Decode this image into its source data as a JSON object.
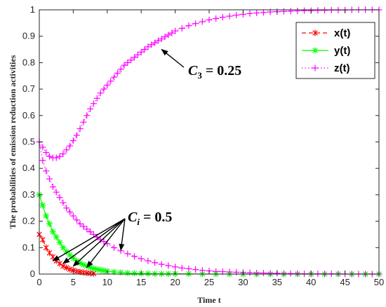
{
  "chart_data": {
    "type": "line",
    "xlabel": "Time t",
    "ylabel": "The probabilities of emission reduction activities",
    "xlim": [
      0,
      50
    ],
    "ylim": [
      0,
      1
    ],
    "x_ticks": [
      0,
      5,
      10,
      15,
      20,
      25,
      30,
      35,
      40,
      45,
      50
    ],
    "y_ticks": [
      0,
      0.1,
      0.2,
      0.3,
      0.4,
      0.5,
      0.6,
      0.7,
      0.8,
      0.9,
      1
    ],
    "grid": false,
    "legend_position": "top-right",
    "series": [
      {
        "name": "x(t)",
        "color": "#ff0000",
        "marker": "x-star",
        "line": "dashed",
        "group": "ci",
        "x": [
          0,
          0.5,
          1,
          1.5,
          2,
          2.5,
          3,
          3.5,
          4,
          4.5,
          5,
          5.5,
          6,
          6.5,
          7,
          7.5,
          8
        ],
        "y": [
          0.15,
          0.13,
          0.1,
          0.08,
          0.065,
          0.05,
          0.04,
          0.03,
          0.024,
          0.018,
          0.014,
          0.01,
          0.008,
          0.006,
          0.004,
          0.003,
          0.002
        ]
      },
      {
        "name": "y(t)",
        "color": "#00ff00",
        "marker": "asterisk",
        "line": "solid",
        "group": "ci",
        "x": [
          0,
          0.5,
          1,
          1.5,
          2,
          2.5,
          3,
          3.5,
          4,
          4.5,
          5,
          5.5,
          6,
          6.5,
          7,
          7.5,
          8,
          8.5,
          9,
          9.5,
          10,
          11,
          12,
          13,
          14,
          15,
          16,
          17,
          18,
          19,
          20,
          22,
          24,
          26,
          28,
          30,
          32,
          34,
          36,
          38,
          40,
          42,
          44,
          46,
          48,
          50
        ],
        "y": [
          0.3,
          0.26,
          0.22,
          0.19,
          0.16,
          0.14,
          0.12,
          0.1,
          0.085,
          0.072,
          0.06,
          0.05,
          0.042,
          0.035,
          0.03,
          0.025,
          0.021,
          0.018,
          0.015,
          0.013,
          0.011,
          0.008,
          0.006,
          0.004,
          0.003,
          0.002,
          0.002,
          0.001,
          0.001,
          0.001,
          0.001,
          0.001,
          0,
          0,
          0,
          0,
          0,
          0,
          0,
          0,
          0,
          0,
          0,
          0,
          0,
          0
        ]
      },
      {
        "name": "z(t)",
        "color": "#ff00ff",
        "marker": "plus",
        "line": "dotted",
        "group": "ci",
        "x": [
          0,
          0.5,
          1,
          1.5,
          2,
          2.5,
          3,
          3.5,
          4,
          4.5,
          5,
          5.5,
          6,
          6.5,
          7,
          7.5,
          8,
          8.5,
          9,
          9.5,
          10,
          11,
          12,
          13,
          14,
          15,
          16,
          17,
          18,
          19,
          20,
          21,
          22,
          23,
          24,
          25,
          26,
          27,
          28,
          29,
          30,
          31,
          32,
          33,
          34,
          35,
          36,
          37,
          38,
          39,
          40,
          41,
          42,
          43,
          44,
          45,
          46,
          47,
          48,
          49,
          50
        ],
        "y": [
          0.5,
          0.43,
          0.39,
          0.36,
          0.33,
          0.31,
          0.29,
          0.27,
          0.25,
          0.235,
          0.22,
          0.205,
          0.19,
          0.18,
          0.17,
          0.16,
          0.15,
          0.14,
          0.13,
          0.123,
          0.115,
          0.1,
          0.088,
          0.077,
          0.067,
          0.058,
          0.05,
          0.043,
          0.037,
          0.032,
          0.027,
          0.023,
          0.02,
          0.017,
          0.014,
          0.012,
          0.01,
          0.009,
          0.008,
          0.007,
          0.006,
          0.005,
          0.004,
          0.004,
          0.003,
          0.003,
          0.002,
          0.002,
          0.002,
          0.001,
          0.001,
          0.001,
          0.001,
          0.001,
          0.001,
          0,
          0,
          0,
          0,
          0,
          0
        ]
      },
      {
        "name": "z(t)",
        "color": "#ff00ff",
        "marker": "plus",
        "line": "dotted",
        "group": "c3",
        "x": [
          0,
          0.5,
          1,
          1.5,
          2,
          2.5,
          3,
          3.5,
          4,
          4.5,
          5,
          5.5,
          6,
          6.5,
          7,
          7.5,
          8,
          8.5,
          9,
          9.5,
          10,
          10.5,
          11,
          11.5,
          12,
          12.5,
          13,
          13.5,
          14,
          14.5,
          15,
          15.5,
          16,
          16.5,
          17,
          17.5,
          18,
          18.5,
          19,
          19.5,
          20,
          21,
          22,
          23,
          24,
          25,
          26,
          27,
          28,
          29,
          30,
          31,
          32,
          33,
          34,
          35,
          36,
          37,
          38,
          39,
          40,
          41,
          42,
          43,
          44,
          45,
          46,
          47,
          48,
          49,
          50
        ],
        "y": [
          0.5,
          0.48,
          0.46,
          0.445,
          0.44,
          0.44,
          0.445,
          0.455,
          0.47,
          0.485,
          0.505,
          0.525,
          0.55,
          0.575,
          0.6,
          0.625,
          0.645,
          0.665,
          0.685,
          0.7,
          0.715,
          0.73,
          0.745,
          0.76,
          0.775,
          0.79,
          0.8,
          0.81,
          0.82,
          0.83,
          0.84,
          0.85,
          0.86,
          0.868,
          0.875,
          0.883,
          0.89,
          0.898,
          0.905,
          0.912,
          0.92,
          0.93,
          0.94,
          0.948,
          0.955,
          0.962,
          0.967,
          0.972,
          0.976,
          0.98,
          0.983,
          0.986,
          0.988,
          0.99,
          0.992,
          0.993,
          0.994,
          0.995,
          0.996,
          0.997,
          0.997,
          0.998,
          0.998,
          0.999,
          0.999,
          0.999,
          1,
          1,
          1,
          1,
          1
        ]
      }
    ],
    "legend": [
      {
        "label": "x(t)",
        "color": "#ff0000",
        "marker": "x-star",
        "line": "dashed"
      },
      {
        "label": "y(t)",
        "color": "#00ff00",
        "marker": "asterisk",
        "line": "solid"
      },
      {
        "label": "z(t)",
        "color": "#ff00ff",
        "marker": "plus",
        "line": "dotted"
      }
    ],
    "annotations": [
      {
        "name": "c3",
        "sym": "C",
        "sub": "3",
        "rest": " = 0.25",
        "arrows": [
          [
            18,
            0.85
          ]
        ]
      },
      {
        "name": "ci",
        "sym": "C",
        "sub": "i",
        "rest": " = 0.5",
        "arrows": [
          [
            2,
            0.05
          ],
          [
            3.5,
            0.04
          ],
          [
            5,
            0.03
          ],
          [
            7,
            0.025
          ],
          [
            12,
            0.09
          ]
        ]
      }
    ]
  }
}
